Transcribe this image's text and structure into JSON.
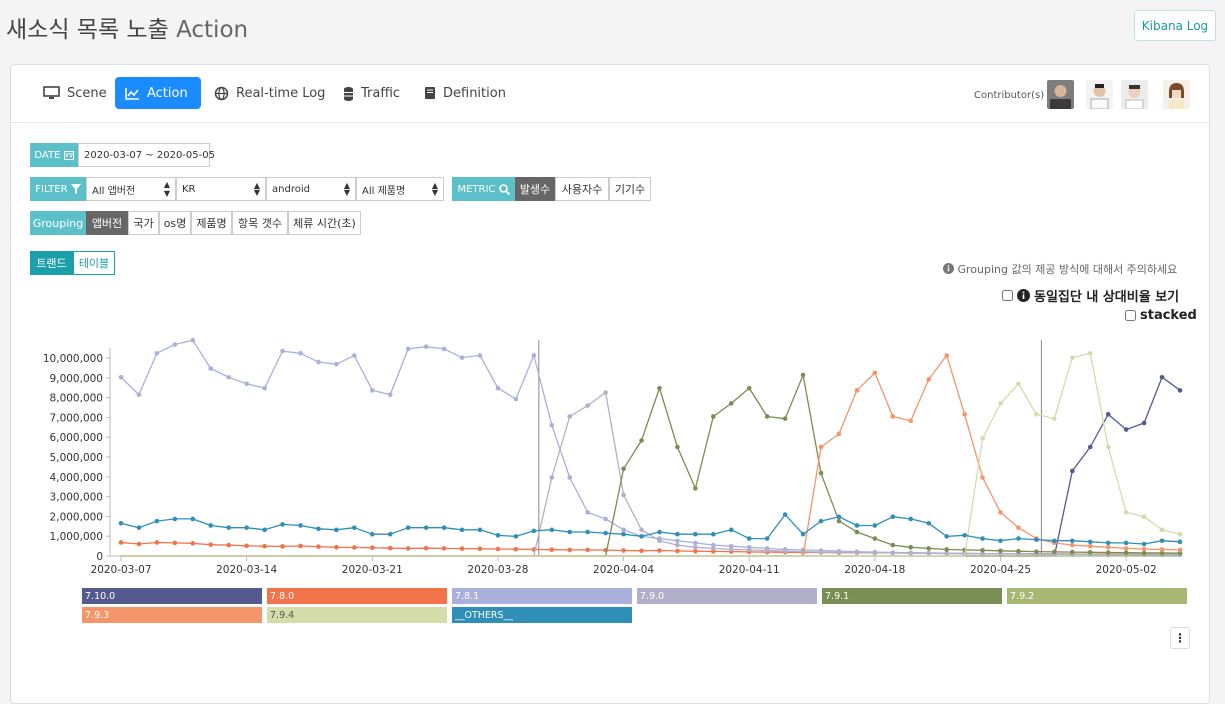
{
  "header": {
    "title": "새소식 목록 노출",
    "subtitle": "Action",
    "kibana_label": "Kibana Log"
  },
  "tabs": [
    {
      "label": "Scene",
      "icon": "monitor-icon"
    },
    {
      "label": "Action",
      "icon": "line-chart-icon",
      "active": true
    },
    {
      "label": "Real-time Log",
      "icon": "globe-icon"
    },
    {
      "label": "Traffic",
      "icon": "database-icon"
    },
    {
      "label": "Definition",
      "icon": "book-icon"
    }
  ],
  "contributors_label": "Contributor(s)",
  "date": {
    "label": "DATE",
    "value": "2020-03-07 ~ 2020-05-05"
  },
  "filter": {
    "label": "FILTER",
    "app_version": "All 앱버전",
    "country": "KR",
    "os": "android",
    "product": "All 제품명"
  },
  "metric": {
    "label": "METRIC",
    "options": [
      "발생수",
      "사용자수",
      "기기수"
    ],
    "selected": "발생수"
  },
  "grouping": {
    "label": "Grouping",
    "options": [
      "앱버전",
      "국가",
      "os명",
      "제품명",
      "항목 갯수",
      "체류 시간(초)"
    ],
    "selected": "앱버전"
  },
  "view": {
    "options": [
      "트랜드",
      "테이블"
    ],
    "selected": "트랜드"
  },
  "notice": "Grouping 값의 제공 방식에 대해서 주의하세요",
  "options": {
    "cohort_label": "동일집단 내 상대비율 보기",
    "stacked_label": "stacked"
  },
  "colors": {
    "accent": "#1a8cff",
    "teal": "#5bc0c8"
  },
  "chart_data": {
    "type": "line",
    "title": "",
    "xlabel": "",
    "ylabel": "",
    "ylim": [
      0,
      10000000
    ],
    "yticks": [
      "0",
      "1,000,000",
      "2,000,000",
      "3,000,000",
      "4,000,000",
      "5,000,000",
      "6,000,000",
      "7,000,000",
      "8,000,000",
      "9,000,000",
      "10,000,000"
    ],
    "xticks": [
      "2020-03-07",
      "2020-03-14",
      "2020-03-21",
      "2020-03-28",
      "2020-04-04",
      "2020-04-11",
      "2020-04-18",
      "2020-04-25",
      "2020-05-02"
    ],
    "x": [
      "2020-03-07",
      "2020-03-08",
      "2020-03-09",
      "2020-03-10",
      "2020-03-11",
      "2020-03-12",
      "2020-03-13",
      "2020-03-14",
      "2020-03-15",
      "2020-03-16",
      "2020-03-17",
      "2020-03-18",
      "2020-03-19",
      "2020-03-20",
      "2020-03-21",
      "2020-03-22",
      "2020-03-23",
      "2020-03-24",
      "2020-03-25",
      "2020-03-26",
      "2020-03-27",
      "2020-03-28",
      "2020-03-29",
      "2020-03-30",
      "2020-03-31",
      "2020-04-01",
      "2020-04-02",
      "2020-04-03",
      "2020-04-04",
      "2020-04-05",
      "2020-04-06",
      "2020-04-07",
      "2020-04-08",
      "2020-04-09",
      "2020-04-10",
      "2020-04-11",
      "2020-04-12",
      "2020-04-13",
      "2020-04-14",
      "2020-04-15",
      "2020-04-16",
      "2020-04-17",
      "2020-04-18",
      "2020-04-19",
      "2020-04-20",
      "2020-04-21",
      "2020-04-22",
      "2020-04-23",
      "2020-04-24",
      "2020-04-25",
      "2020-04-26",
      "2020-04-27",
      "2020-04-28",
      "2020-04-29",
      "2020-04-30",
      "2020-05-01",
      "2020-05-02",
      "2020-05-03",
      "2020-05-04",
      "2020-05-05"
    ],
    "markers": [
      "2020-03-30",
      "2020-04-27"
    ],
    "grid": false,
    "legend_position": "bottom",
    "series": [
      {
        "name": "7.10.0",
        "color": "#545a8f",
        "values": [
          0,
          0,
          0,
          0,
          0,
          0,
          0,
          0,
          0,
          0,
          0,
          0,
          0,
          0,
          0,
          0,
          0,
          0,
          0,
          0,
          0,
          0,
          0,
          0,
          0,
          0,
          0,
          0,
          0,
          0,
          0,
          0,
          0,
          0,
          0,
          0,
          0,
          0,
          0,
          0,
          0,
          0,
          0,
          0,
          0,
          0,
          0,
          0,
          0,
          0,
          0,
          0,
          0,
          3900000,
          5000000,
          6500000,
          5800000,
          6100000,
          8200000,
          7600000
        ]
      },
      {
        "name": "7.8.0",
        "color": "#f2724a",
        "values": [
          620000,
          550000,
          620000,
          600000,
          580000,
          520000,
          500000,
          470000,
          450000,
          440000,
          460000,
          430000,
          400000,
          390000,
          380000,
          360000,
          350000,
          360000,
          350000,
          340000,
          330000,
          320000,
          310000,
          300000,
          290000,
          280000,
          280000,
          270000,
          250000,
          240000,
          250000,
          230000,
          220000,
          210000,
          200000,
          190000,
          180000,
          170000,
          160000,
          160000,
          150000,
          150000,
          140000,
          140000,
          130000,
          130000,
          120000,
          120000,
          110000,
          110000,
          100000,
          100000,
          100000,
          90000,
          90000,
          90000,
          80000,
          80000,
          80000,
          80000
        ]
      },
      {
        "name": "7.8.1",
        "color": "#a9b0dc",
        "values": [
          8200000,
          7400000,
          9300000,
          9700000,
          9900000,
          8600000,
          8200000,
          7900000,
          7700000,
          9400000,
          9300000,
          8900000,
          8800000,
          9200000,
          7600000,
          7400000,
          9500000,
          9600000,
          9500000,
          9100000,
          9200000,
          7700000,
          7200000,
          9200000,
          6000000,
          3600000,
          2000000,
          1700000,
          1200000,
          900000,
          800000,
          700000,
          600000,
          500000,
          450000,
          400000,
          350000,
          300000,
          280000,
          250000,
          220000,
          200000,
          180000,
          160000,
          150000,
          140000,
          130000,
          120000,
          110000,
          100000,
          100000,
          90000,
          90000,
          80000,
          80000,
          70000,
          70000,
          60000,
          60000,
          60000
        ]
      },
      {
        "name": "7.9.0",
        "color": "#b2afcb",
        "values": [
          0,
          0,
          0,
          0,
          0,
          0,
          0,
          0,
          0,
          0,
          0,
          0,
          0,
          0,
          0,
          0,
          0,
          0,
          0,
          0,
          0,
          0,
          0,
          0,
          3600000,
          6400000,
          6900000,
          7500000,
          2800000,
          1200000,
          700000,
          500000,
          400000,
          350000,
          300000,
          280000,
          250000,
          220000,
          200000,
          180000,
          170000,
          160000,
          150000,
          140000,
          130000,
          120000,
          110000,
          100000,
          100000,
          90000,
          90000,
          80000,
          80000,
          70000,
          70000,
          60000,
          60000,
          60000,
          50000,
          50000
        ]
      },
      {
        "name": "7.9.1",
        "color": "#7a8d52",
        "values": [
          0,
          0,
          0,
          0,
          0,
          0,
          0,
          0,
          0,
          0,
          0,
          0,
          0,
          0,
          0,
          0,
          0,
          0,
          0,
          0,
          0,
          0,
          0,
          0,
          0,
          0,
          0,
          0,
          4000000,
          5300000,
          7700000,
          5000000,
          3100000,
          6400000,
          7000000,
          7700000,
          6400000,
          6300000,
          8300000,
          3800000,
          1600000,
          1100000,
          800000,
          500000,
          400000,
          350000,
          300000,
          280000,
          260000,
          240000,
          220000,
          200000,
          190000,
          180000,
          170000,
          160000,
          150000,
          140000,
          140000,
          130000
        ]
      },
      {
        "name": "7.9.2",
        "color": "#a8b873",
        "values": [
          0,
          0,
          0,
          0,
          0,
          0,
          0,
          0,
          0,
          0,
          0,
          0,
          0,
          0,
          0,
          0,
          0,
          0,
          0,
          0,
          0,
          0,
          0,
          0,
          0,
          0,
          0,
          0,
          0,
          0,
          0,
          0,
          0,
          0,
          0,
          0,
          0,
          0,
          0,
          0,
          0,
          0,
          0,
          0,
          0,
          0,
          0,
          0,
          0,
          0,
          0,
          0,
          0,
          0,
          0,
          0,
          0,
          0,
          0,
          0
        ]
      },
      {
        "name": "7.9.3",
        "color": "#f4956a",
        "values": [
          0,
          0,
          0,
          0,
          0,
          0,
          0,
          0,
          0,
          0,
          0,
          0,
          0,
          0,
          0,
          0,
          0,
          0,
          0,
          0,
          0,
          0,
          0,
          0,
          0,
          0,
          0,
          0,
          0,
          0,
          0,
          0,
          0,
          0,
          0,
          0,
          0,
          0,
          0,
          5000000,
          5600000,
          7600000,
          8400000,
          6400000,
          6200000,
          8100000,
          9200000,
          6500000,
          3600000,
          2000000,
          1300000,
          800000,
          600000,
          500000,
          450000,
          400000,
          350000,
          320000,
          300000,
          280000
        ]
      },
      {
        "name": "7.9.4",
        "color": "#d4dcaa",
        "values": [
          0,
          0,
          0,
          0,
          0,
          0,
          0,
          0,
          0,
          0,
          0,
          0,
          0,
          0,
          0,
          0,
          0,
          0,
          0,
          0,
          0,
          0,
          0,
          0,
          0,
          0,
          0,
          0,
          0,
          0,
          0,
          0,
          0,
          0,
          0,
          0,
          0,
          0,
          0,
          0,
          0,
          0,
          0,
          0,
          0,
          0,
          0,
          0,
          5400000,
          7000000,
          7900000,
          6500000,
          6300000,
          9100000,
          9300000,
          5000000,
          2000000,
          1800000,
          1200000,
          1000000
        ]
      },
      {
        "name": "__OTHERS__",
        "color": "#2f8fb8",
        "values": [
          1500000,
          1300000,
          1600000,
          1700000,
          1700000,
          1400000,
          1300000,
          1300000,
          1200000,
          1450000,
          1400000,
          1250000,
          1200000,
          1300000,
          1000000,
          1000000,
          1300000,
          1300000,
          1300000,
          1200000,
          1200000,
          950000,
          900000,
          1150000,
          1200000,
          1100000,
          1100000,
          1050000,
          1000000,
          900000,
          1100000,
          1000000,
          1000000,
          1000000,
          1200000,
          800000,
          800000,
          1900000,
          1000000,
          1600000,
          1800000,
          1400000,
          1400000,
          1800000,
          1700000,
          1500000,
          900000,
          950000,
          800000,
          700000,
          800000,
          750000,
          700000,
          700000,
          650000,
          600000,
          600000,
          550000,
          700000,
          650000
        ]
      }
    ]
  }
}
